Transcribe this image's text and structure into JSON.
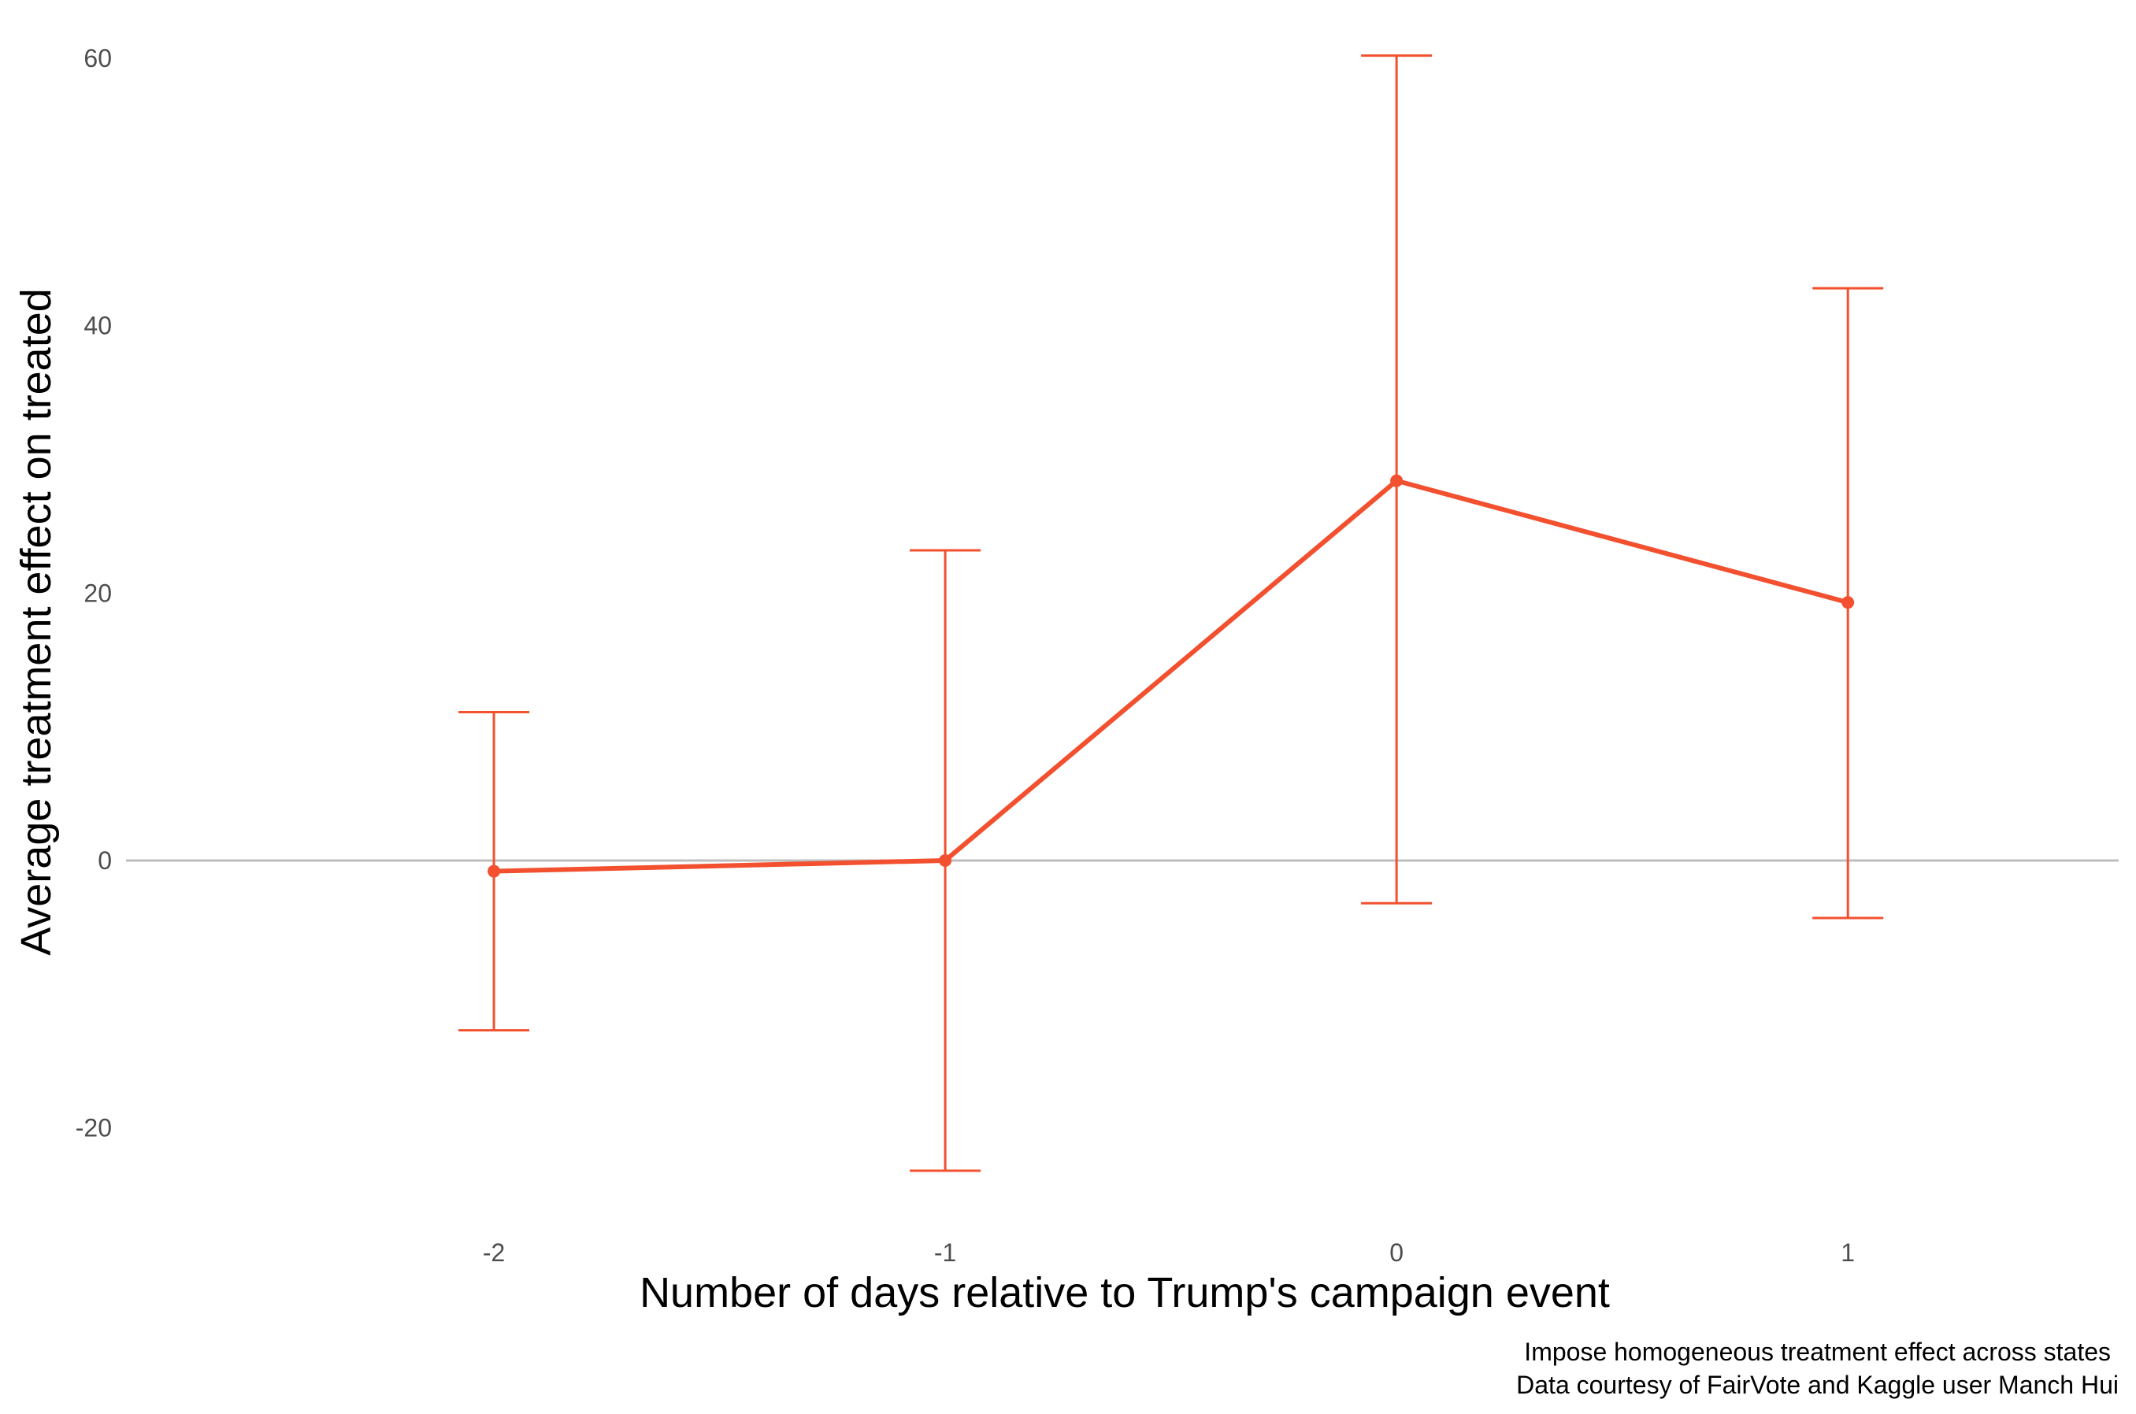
{
  "chart_data": {
    "type": "line",
    "title": "",
    "xlabel": "Number of days relative to Trump's campaign event",
    "ylabel": "Average treatment effect on treated",
    "caption_lines": [
      "Impose homogeneous treatment effect across states",
      "Data courtesy of FairVote and Kaggle user Manch Hui"
    ],
    "x_ticks": [
      "-2",
      "-1",
      "0",
      "1"
    ],
    "y_ticks": [
      "-20",
      "0",
      "20",
      "40",
      "60"
    ],
    "xlim": [
      -2.85,
      1.6
    ],
    "ylim": [
      -27.5,
      62
    ],
    "grid": false,
    "reference_line_y": 0,
    "series": [
      {
        "x": [
          -2,
          -1,
          0,
          1
        ],
        "y": [
          -0.8,
          0.0,
          28.4,
          19.3
        ],
        "ci_lower": [
          -12.7,
          -23.2,
          -3.2,
          -4.3
        ],
        "ci_upper": [
          11.1,
          23.2,
          60.2,
          42.8
        ]
      }
    ],
    "colors": {
      "series": "#f2502f",
      "reference_line": "#bebebe"
    }
  }
}
